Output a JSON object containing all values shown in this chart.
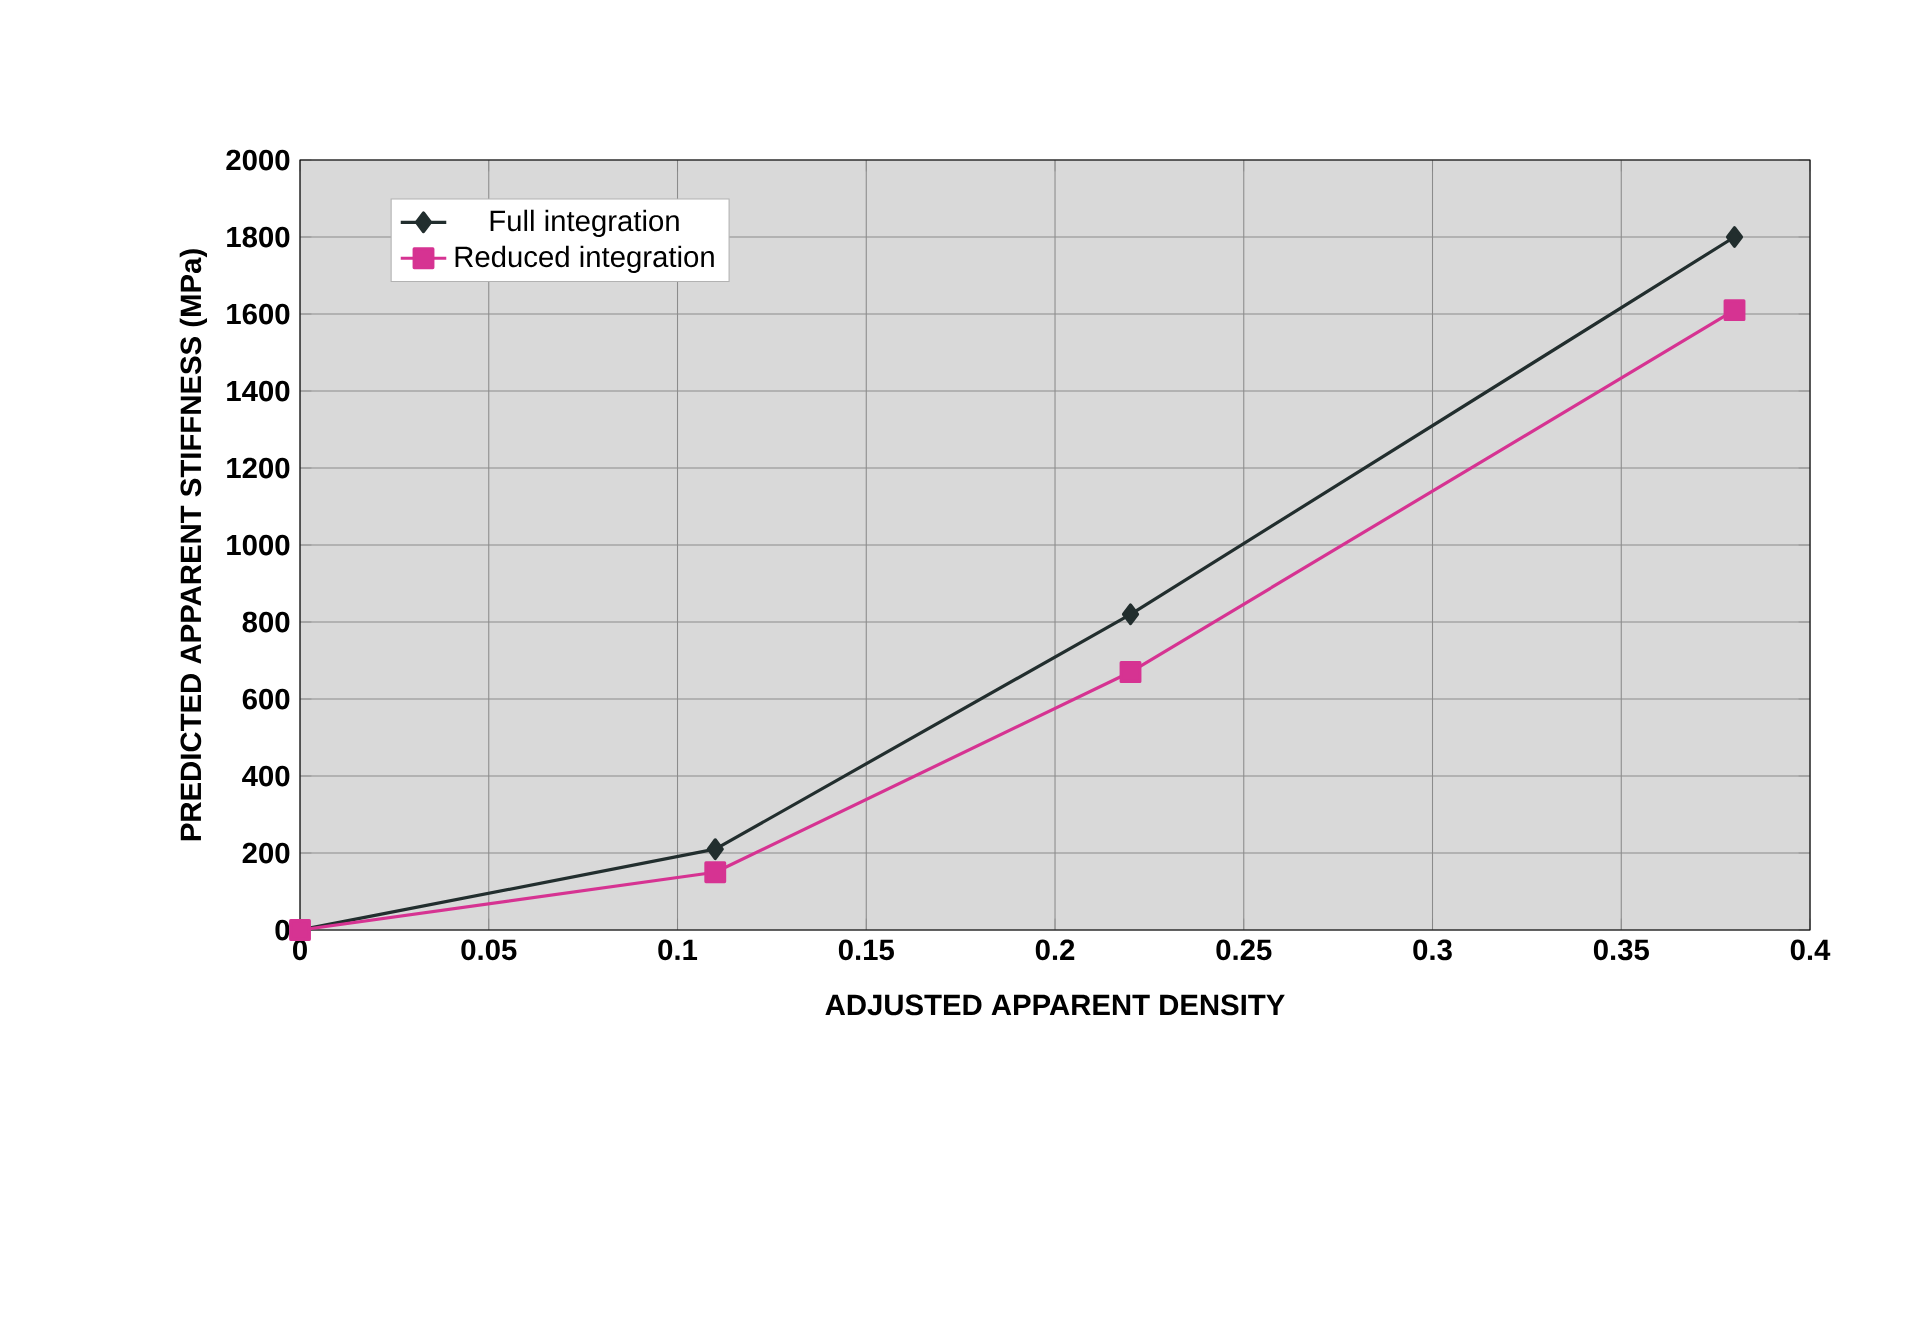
{
  "chart_data": {
    "type": "line",
    "xlabel": "ADJUSTED APPARENT DENSITY",
    "ylabel": "PREDICTED APPARENT STIFFNESS (MPa)",
    "x": [
      0,
      0.11,
      0.22,
      0.38
    ],
    "series": [
      {
        "name": "Full integration",
        "color": "#222e2e",
        "values": [
          0,
          210,
          820,
          1800
        ],
        "marker": "diamond"
      },
      {
        "name": "Reduced integration",
        "color": "#d63392",
        "values": [
          0,
          150,
          670,
          1610
        ],
        "marker": "square"
      }
    ],
    "xlim": [
      0,
      0.4
    ],
    "xticks": [
      0,
      0.05,
      0.1,
      0.15,
      0.2,
      0.25,
      0.3,
      0.35,
      0.4
    ],
    "ylim": [
      0,
      2000
    ],
    "yticks": [
      0,
      200,
      400,
      600,
      800,
      1000,
      1200,
      1400,
      1600,
      1800,
      2000
    ],
    "grid": true,
    "legend": "top left",
    "line_style": "solid"
  }
}
